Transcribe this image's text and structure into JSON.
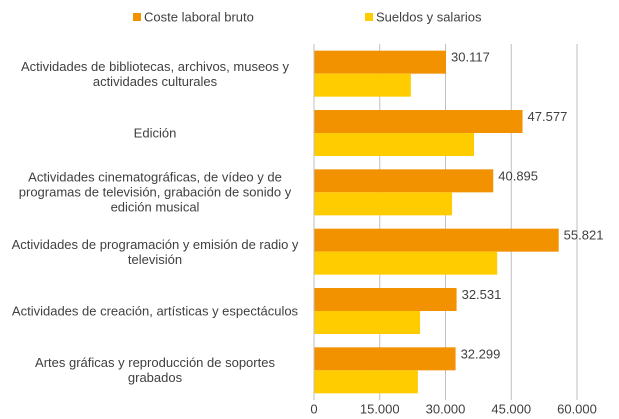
{
  "chart_data": {
    "type": "hbar",
    "categories": [
      "Actividades de bibliotecas, archivos, museos y actividades culturales",
      "Edición",
      "Actividades cinematográficas, de vídeo y de programas de televisión, grabación de sonido y edición musical",
      "Actividades de programación y emisión de radio y televisión",
      "Actividades de creación, artísticas y espectáculos",
      "Artes gráficas y reproducción de soportes grabados"
    ],
    "series": [
      {
        "name": "Coste laboral bruto",
        "color": "#f39200",
        "values": [
          30117,
          47577,
          40895,
          55821,
          32531,
          32299
        ],
        "value_labels": [
          "30.117",
          "47.577",
          "40.895",
          "55.821",
          "32.531",
          "32.299"
        ]
      },
      {
        "name": "Sueldos y salarios",
        "color": "#ffcc00",
        "values": [
          22100,
          36500,
          31500,
          41800,
          24200,
          23700
        ]
      }
    ],
    "xlim": [
      0,
      60000
    ],
    "xticks": [
      0,
      {
        "value": 15000,
        "label": "15.000"
      },
      {
        "value": 30000,
        "label": "30.000"
      },
      {
        "value": 45000,
        "label": "45.000"
      },
      {
        "value": 60000,
        "label": "60.000"
      }
    ],
    "grid": true,
    "legend": "top"
  }
}
